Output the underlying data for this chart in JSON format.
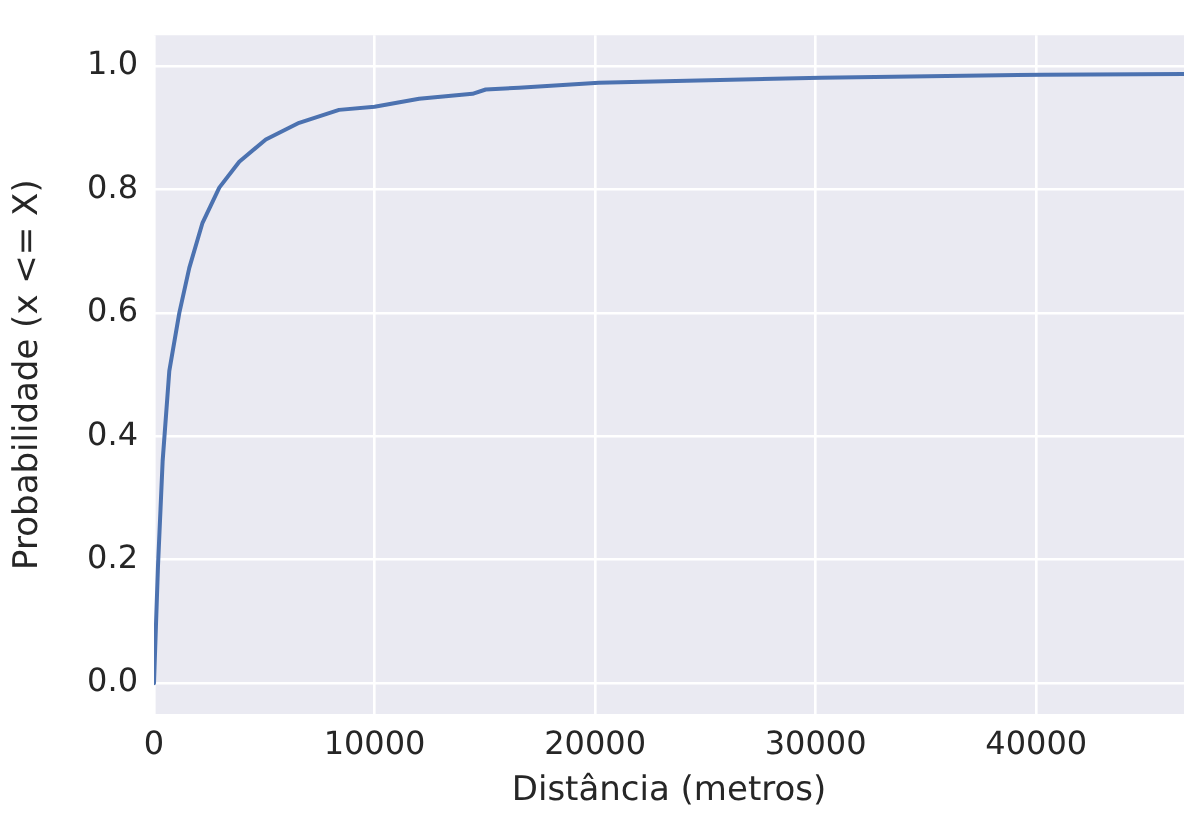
{
  "chart_data": {
    "type": "line",
    "xlabel": "Distância (metros)",
    "ylabel": "Probabilidade (x <= X)",
    "x": [
      0,
      181,
      392,
      694,
      1148,
      1600,
      2200,
      2960,
      3865,
      5070,
      6580,
      8390,
      10000,
      12020,
      14440,
      15040,
      16550,
      20170,
      30250,
      40340,
      46700
    ],
    "series": [
      {
        "color": "#4c72b0",
        "values": [
          0,
          0.19,
          0.36,
          0.506,
          0.6,
          0.673,
          0.746,
          0.803,
          0.845,
          0.881,
          0.908,
          0.929,
          0.934,
          0.947,
          0.955,
          0.962,
          0.965,
          0.973,
          0.981,
          0.986,
          0.987
        ]
      }
    ],
    "xlim": [
      0,
      46700
    ],
    "xticks": [
      0,
      10000,
      20000,
      30000,
      40000
    ],
    "ylim": [
      -0.05,
      1.05
    ],
    "yticks": [
      {
        "value": 0,
        "label": "0.0"
      },
      {
        "value": 0.2,
        "label": "0.2"
      },
      {
        "value": 0.4,
        "label": "0.4"
      },
      {
        "value": 0.6,
        "label": "0.6"
      },
      {
        "value": 0.8,
        "label": "0.8"
      },
      {
        "value": 1,
        "label": "1.0"
      }
    ],
    "grid": true,
    "legend": false,
    "marker": "none",
    "line_style": "solid"
  }
}
